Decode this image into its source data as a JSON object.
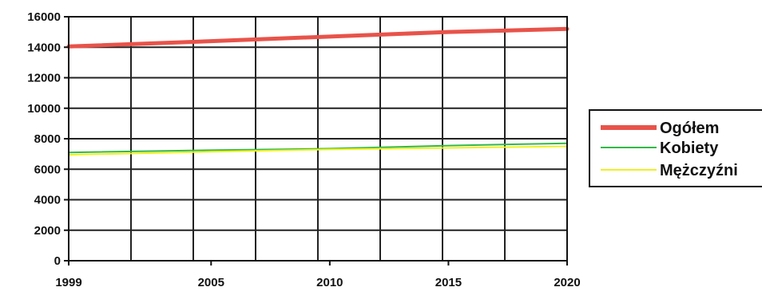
{
  "chart_data": {
    "type": "line",
    "x": [
      1999,
      2005,
      2010,
      2015,
      2020
    ],
    "x_ticks": [
      "1999",
      "2005",
      "2010",
      "2015",
      "2020"
    ],
    "xlim": [
      1999,
      2020
    ],
    "ylim": [
      0,
      16000
    ],
    "y_ticks": [
      "0",
      "2000",
      "4000",
      "6000",
      "8000",
      "10000",
      "12000",
      "14000",
      "16000"
    ],
    "grid": true,
    "legend_position": "right",
    "series": [
      {
        "name": "Ogółem",
        "color": "#e8534a",
        "values": [
          14050,
          14400,
          14700,
          15000,
          15200
        ]
      },
      {
        "name": "Kobiety",
        "color": "#33b84a",
        "values": [
          7100,
          7250,
          7350,
          7550,
          7700
        ]
      },
      {
        "name": "Mężczyźni",
        "color": "#f0f020",
        "values": [
          6950,
          7150,
          7300,
          7400,
          7500
        ]
      }
    ]
  }
}
